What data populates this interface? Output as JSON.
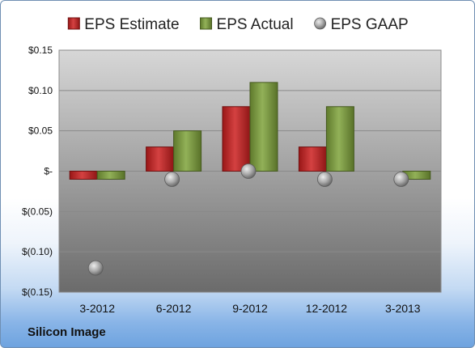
{
  "chart_data": {
    "type": "bar",
    "categories": [
      "3-2012",
      "6-2012",
      "9-2012",
      "12-2012",
      "3-2013"
    ],
    "series": [
      {
        "name": "EPS Estimate",
        "kind": "bar",
        "color": "#cc1f1f",
        "values": [
          -0.01,
          0.03,
          0.08,
          0.03,
          null
        ]
      },
      {
        "name": "EPS Actual",
        "kind": "bar",
        "color": "#7fa33a",
        "values": [
          -0.01,
          0.05,
          0.11,
          0.08,
          -0.01
        ]
      },
      {
        "name": "EPS GAAP",
        "kind": "marker",
        "color": "#a6a6a6",
        "values": [
          -0.12,
          -0.01,
          0.0,
          -0.01,
          -0.01
        ]
      }
    ],
    "yticks": [
      {
        "value": 0.15,
        "label": "$0.15"
      },
      {
        "value": 0.1,
        "label": "$0.10"
      },
      {
        "value": 0.05,
        "label": "$0.05"
      },
      {
        "value": 0.0,
        "label": "$-"
      },
      {
        "value": -0.05,
        "label": "$(0.05)"
      },
      {
        "value": -0.1,
        "label": "$(0.10)"
      },
      {
        "value": -0.15,
        "label": "$(0.15)"
      }
    ],
    "ylim": [
      -0.15,
      0.15
    ],
    "grid": true,
    "legend_position": "top",
    "title": "",
    "xlabel": "",
    "ylabel": ""
  },
  "footer": {
    "company": "Silicon Image"
  },
  "colors": {
    "plot_top": "#d7d7d7",
    "plot_bottom": "#6b6b6b",
    "grid": "#8a8a8a",
    "background_bottom": "#6ea3df"
  }
}
